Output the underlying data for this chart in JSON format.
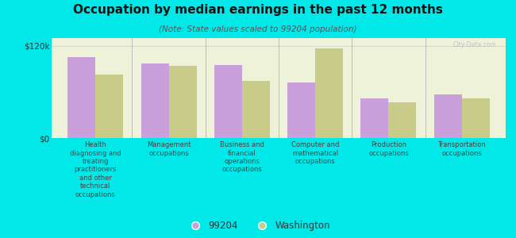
{
  "title": "Occupation by median earnings in the past 12 months",
  "subtitle": "(Note: State values scaled to 99204 population)",
  "background_color": "#00e8e8",
  "plot_bg_top": "#eef2d8",
  "plot_bg_bottom": "#f5f8e8",
  "categories": [
    "Health\ndiagnosing and\ntreating\npractitioners\nand other\ntechnical\noccupations",
    "Management\noccupations",
    "Business and\nfinancial\noperations\noccupations",
    "Computer and\nmathematical\noccupations",
    "Production\noccupations",
    "Transportation\noccupations"
  ],
  "values_99204": [
    105000,
    97000,
    95000,
    72000,
    52000,
    57000
  ],
  "values_washington": [
    83000,
    94000,
    74000,
    117000,
    46000,
    52000
  ],
  "color_99204": "#c9a0dc",
  "color_washington": "#c8cc88",
  "ylim": [
    0,
    130000
  ],
  "yticks": [
    0,
    120000
  ],
  "ytick_labels": [
    "$0",
    "$120k"
  ],
  "legend_99204": "99204",
  "legend_washington": "Washington",
  "bar_width": 0.38,
  "watermark": "City-Data.com"
}
